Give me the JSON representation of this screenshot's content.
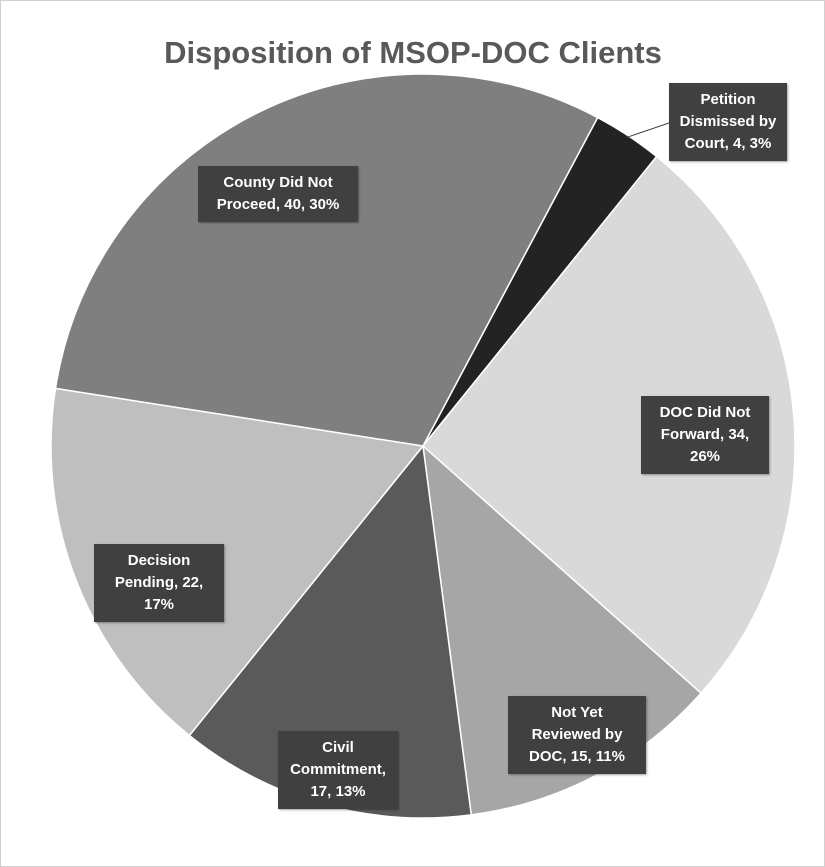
{
  "chart_data": {
    "type": "pie",
    "title": "Disposition of MSOP-DOC Clients",
    "categories": [
      "Petition Dismissed by Court",
      "DOC Did Not Forward",
      "Not Yet Reviewed by DOC",
      "Civil Commitment",
      "Decision Pending",
      "County Did Not Proceed"
    ],
    "values": [
      4,
      34,
      15,
      17,
      22,
      40
    ],
    "value_labels": [
      "4, 3%",
      "34, 26%",
      "15, 11%",
      "17, 13%",
      "22, 17%",
      "40, 30%"
    ],
    "colors": [
      "#232323",
      "#d9d9d9",
      "#a6a6a6",
      "#5a5a5a",
      "#bfbfbf",
      "#7f7f7f"
    ]
  }
}
